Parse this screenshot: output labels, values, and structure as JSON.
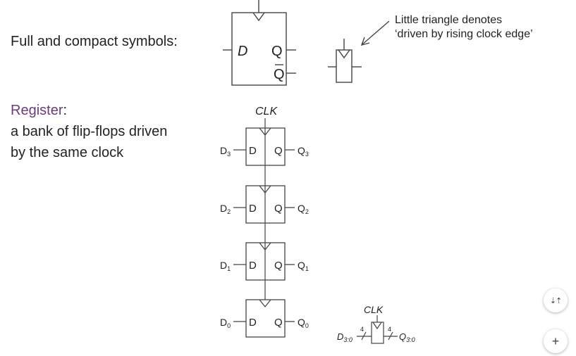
{
  "labels": {
    "full_compact": "Full and compact symbols:",
    "register_title": "Register",
    "register_colon": ":",
    "register_desc_line1": "a bank of flip-flops driven",
    "register_desc_line2": "by the same clock",
    "note_line1": "Little triangle denotes",
    "note_line2": "‘driven by rising clock edge’"
  },
  "full_symbol": {
    "d": "D",
    "q": "Q",
    "qbar": "Q"
  },
  "register": {
    "clk": "CLK",
    "pin_d": "D",
    "pin_q": "Q",
    "inputs": [
      "D",
      "D",
      "D",
      "D"
    ],
    "outputs": [
      "Q",
      "Q",
      "Q",
      "Q"
    ],
    "subscripts": [
      "3",
      "2",
      "1",
      "0"
    ]
  },
  "compact_register": {
    "clk": "CLK",
    "in_label": "D",
    "in_sub": "3:0",
    "out_label": "Q",
    "out_sub": "3:0",
    "width_in": "4",
    "width_out": "4"
  },
  "controls": {
    "collapse_icon": "⇣⇡",
    "zoom_in": "+"
  },
  "colors": {
    "register_title": "#6b3a7a",
    "stroke": "#444444"
  }
}
